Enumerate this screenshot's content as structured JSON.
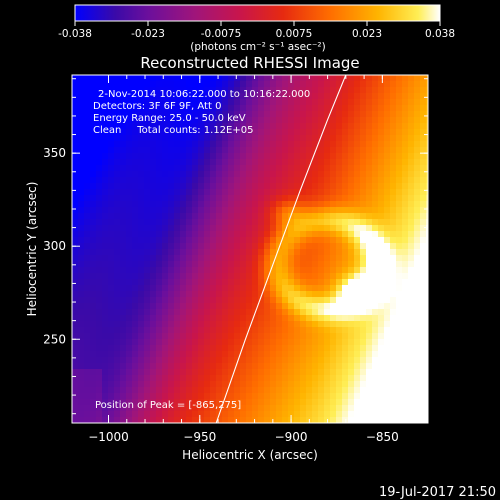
{
  "chart_data": {
    "type": "heatmap",
    "title": "Reconstructed RHESSI Image",
    "xlabel": "Heliocentric X (arcsec)",
    "ylabel": "Heliocentric Y (arcsec)",
    "xlim": [
      -1020,
      -825
    ],
    "ylim": [
      205,
      392
    ],
    "x_ticks": [
      -1000,
      -950,
      -900,
      -850
    ],
    "y_ticks": [
      250,
      300,
      350
    ],
    "colorbar": {
      "min": -0.038,
      "max": 0.038,
      "ticks": [
        "-0.038",
        "-0.023",
        "-0.0075",
        "0.0075",
        "0.023",
        "0.038"
      ],
      "label": "(photons cm⁻² s⁻¹ asec⁻²)"
    },
    "annotations": [
      "2-Nov-2014 10:06:22.000 to 10:16:22.000",
      "Detectors: 3F 6F 9F, Att 0",
      "Energy Range: 25.0 - 50.0 keV",
      "Clean     Total counts: 1.12E+05"
    ],
    "peak_label": "Position of Peak = [-865,275]",
    "peak": [
      -865,
      275
    ],
    "limb": [
      [
        -941,
        205
      ],
      [
        -925,
        250
      ],
      [
        -910,
        290
      ],
      [
        -895,
        330
      ],
      [
        -880,
        368
      ],
      [
        -870,
        392
      ]
    ]
  },
  "footer": {
    "date": "19-Jul-2017 21:50"
  }
}
